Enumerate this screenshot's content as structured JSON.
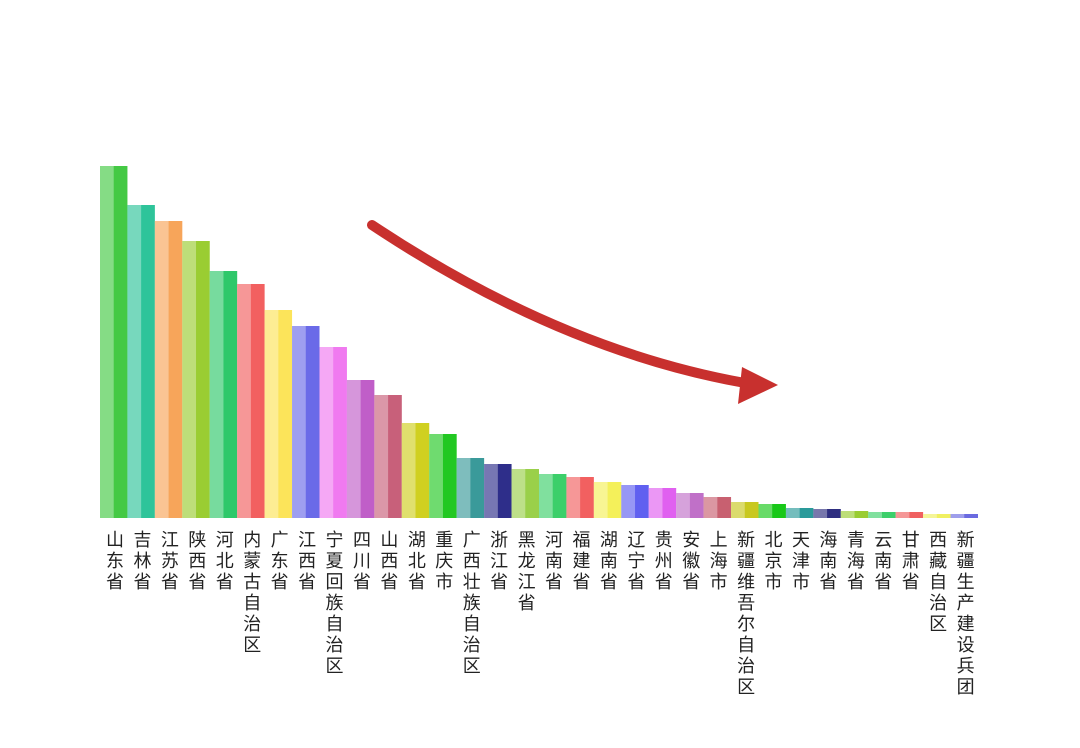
{
  "chart_data": {
    "type": "bar",
    "categories": [
      "山东省",
      "吉林省",
      "江苏省",
      "陕西省",
      "河北省",
      "内蒙古自治区",
      "广东省",
      "江西省",
      "宁夏回族自治区",
      "四川省",
      "山西省",
      "湖北省",
      "重庆市",
      "广西壮族自治区",
      "浙江省",
      "黑龙江省",
      "河南省",
      "福建省",
      "湖南省",
      "辽宁省",
      "贵州省",
      "安徽省",
      "上海市",
      "新疆维吾尔自治区",
      "北京市",
      "天津市",
      "海南省",
      "青海省",
      "云南省",
      "甘肃省",
      "西藏自治区",
      "新疆生产建设兵团"
    ],
    "values": [
      352,
      313,
      297,
      277,
      247,
      234,
      208,
      192,
      171,
      138,
      123,
      95,
      84,
      60,
      54,
      49,
      44,
      41,
      36,
      33,
      30,
      25,
      21,
      16,
      14,
      10,
      9,
      7,
      6,
      6,
      4,
      4
    ],
    "colors": [
      "#44c944",
      "#2ec49a",
      "#f7a55a",
      "#9acd32",
      "#2ec86a",
      "#f26060",
      "#fce45a",
      "#6a6ae8",
      "#f07af0",
      "#c05ec8",
      "#c8607a",
      "#d0d020",
      "#22c822",
      "#3a9a9a",
      "#2e2e8a",
      "#9ad04a",
      "#3ccf6a",
      "#f26060",
      "#f4f05a",
      "#6060f0",
      "#e060f0",
      "#c070c8",
      "#c86070",
      "#c8c820",
      "#18c818",
      "#2a9a9a",
      "#2e2e80",
      "#9acd32",
      "#3ccf6a",
      "#f06060",
      "#f0f060",
      "#6a6ae0"
    ],
    "ylim": [
      0,
      360
    ]
  }
}
